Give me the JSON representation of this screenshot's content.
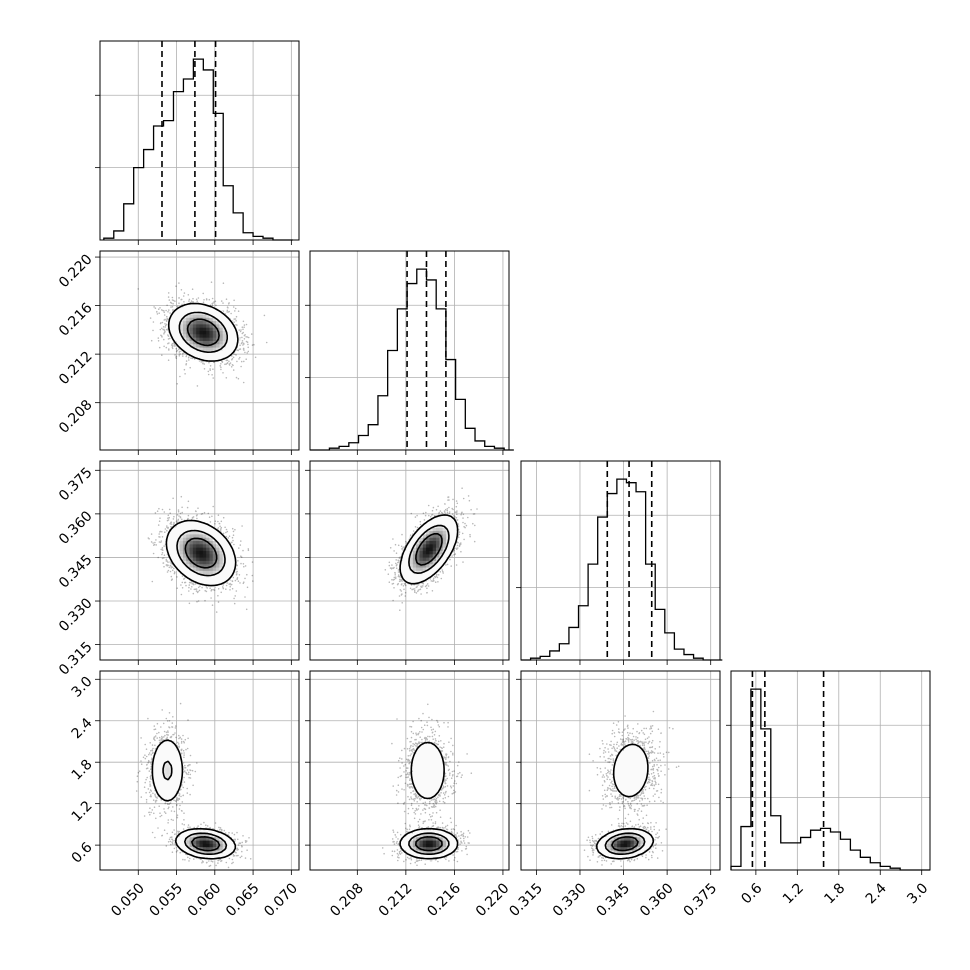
{
  "figure": {
    "type": "corner_plot",
    "n_params": 4,
    "grid": true,
    "quantiles": [
      0.16,
      0.5,
      0.84
    ]
  },
  "chart_data": [
    {
      "type": "histogram",
      "param_index": 0,
      "x_range": [
        0.045,
        0.071
      ],
      "x_ticks": [
        "0.050",
        "0.055",
        "0.060",
        "0.065",
        "0.070"
      ],
      "bins": [
        0.0455,
        0.0468,
        0.0481,
        0.0494,
        0.0507,
        0.052,
        0.0533,
        0.0546,
        0.0559,
        0.0572,
        0.0585,
        0.0598,
        0.0611,
        0.0624,
        0.0637,
        0.065,
        0.0663,
        0.0676,
        0.0689
      ],
      "counts": [
        0.01,
        0.05,
        0.2,
        0.4,
        0.5,
        0.63,
        0.66,
        0.82,
        0.89,
        1.0,
        0.94,
        0.7,
        0.3,
        0.15,
        0.04,
        0.02,
        0.01,
        0.0,
        0.0
      ],
      "quantile_values": [
        0.0531,
        0.0574,
        0.0601
      ]
    },
    {
      "type": "histogram",
      "param_index": 1,
      "x_range": [
        0.2041,
        0.2205
      ],
      "x_ticks": [
        "0.208",
        "0.212",
        "0.216",
        "0.220"
      ],
      "bins": [
        0.2041,
        0.2049,
        0.2057,
        0.2065,
        0.2073,
        0.2081,
        0.2089,
        0.2097,
        0.2105,
        0.2113,
        0.2121,
        0.2129,
        0.2137,
        0.2145,
        0.2153,
        0.2161,
        0.2169,
        0.2177,
        0.2185,
        0.2193,
        0.2201
      ],
      "counts": [
        0.0,
        0.0,
        0.01,
        0.02,
        0.04,
        0.08,
        0.14,
        0.3,
        0.55,
        0.78,
        0.92,
        1.0,
        0.94,
        0.78,
        0.5,
        0.28,
        0.12,
        0.05,
        0.02,
        0.01,
        0.0
      ],
      "quantile_values": [
        0.2121,
        0.2137,
        0.2153
      ]
    },
    {
      "type": "histogram",
      "param_index": 2,
      "x_range": [
        0.3097,
        0.3782
      ],
      "x_ticks": [
        "0.315",
        "0.330",
        "0.345",
        "0.360",
        "0.375"
      ],
      "bins": [
        0.3097,
        0.313,
        0.3163,
        0.3196,
        0.3229,
        0.3262,
        0.3295,
        0.3328,
        0.3361,
        0.3394,
        0.3427,
        0.346,
        0.3493,
        0.3526,
        0.3559,
        0.3592,
        0.3625,
        0.3658,
        0.3691,
        0.3724,
        0.3757
      ],
      "counts": [
        0.0,
        0.01,
        0.02,
        0.05,
        0.09,
        0.18,
        0.3,
        0.53,
        0.79,
        0.92,
        1.0,
        0.98,
        0.93,
        0.53,
        0.28,
        0.15,
        0.06,
        0.03,
        0.01,
        0.0,
        0.0
      ],
      "quantile_values": [
        0.3394,
        0.3469,
        0.3547
      ]
    },
    {
      "type": "histogram",
      "param_index": 3,
      "x_range": [
        0.24,
        3.12
      ],
      "x_ticks": [
        "0.6",
        "1.2",
        "1.8",
        "2.4",
        "3.0"
      ],
      "bins": [
        0.24,
        0.384,
        0.528,
        0.672,
        0.816,
        0.96,
        1.104,
        1.248,
        1.392,
        1.536,
        1.68,
        1.824,
        1.968,
        2.112,
        2.256,
        2.4,
        2.544,
        2.688,
        2.832,
        2.976
      ],
      "counts": [
        0.02,
        0.24,
        1.0,
        0.78,
        0.3,
        0.15,
        0.15,
        0.18,
        0.22,
        0.23,
        0.21,
        0.17,
        0.11,
        0.07,
        0.04,
        0.02,
        0.01,
        0.0,
        0.0,
        0.0
      ],
      "quantile_values": [
        0.55,
        0.73,
        1.58
      ]
    },
    {
      "type": "2d_density",
      "x_param": 0,
      "y_param": 1,
      "y_ticks": [
        "0.208",
        "0.212",
        "0.216",
        "0.220"
      ],
      "y_range": [
        0.2041,
        0.2205
      ],
      "modes": [
        {
          "x": 0.0585,
          "y": 0.2138,
          "sx": 0.0021,
          "sy": 0.0011,
          "rho": -0.25,
          "weight": 1.0
        }
      ]
    },
    {
      "type": "2d_density",
      "x_param": 0,
      "y_param": 2,
      "y_ticks": [
        "0.315",
        "0.330",
        "0.345",
        "0.360",
        "0.375"
      ],
      "y_range": [
        0.3097,
        0.3782
      ],
      "modes": [
        {
          "x": 0.0582,
          "y": 0.3465,
          "sx": 0.0021,
          "sy": 0.0052,
          "rho": -0.3,
          "weight": 1.0
        }
      ]
    },
    {
      "type": "2d_density",
      "x_param": 1,
      "y_param": 2,
      "modes": [
        {
          "x": 0.2139,
          "y": 0.3478,
          "sx": 0.0011,
          "sy": 0.0055,
          "rho": 0.55,
          "weight": 1.0
        }
      ]
    },
    {
      "type": "2d_density",
      "x_param": 0,
      "y_param": 3,
      "y_ticks": [
        "0.6",
        "1.2",
        "1.8",
        "2.4",
        "3.0"
      ],
      "y_range": [
        0.24,
        3.12
      ],
      "modes": [
        {
          "x": 0.0588,
          "y": 0.62,
          "sx": 0.0018,
          "sy": 0.1,
          "rho": -0.2,
          "weight": 0.6
        },
        {
          "x": 0.0538,
          "y": 1.68,
          "sx": 0.0012,
          "sy": 0.27,
          "rho": 0.0,
          "weight": 0.4
        }
      ]
    },
    {
      "type": "2d_density",
      "x_param": 1,
      "y_param": 3,
      "modes": [
        {
          "x": 0.2139,
          "y": 0.62,
          "sx": 0.0011,
          "sy": 0.1,
          "rho": 0.0,
          "weight": 0.6
        },
        {
          "x": 0.2138,
          "y": 1.68,
          "sx": 0.0009,
          "sy": 0.27,
          "rho": 0.0,
          "weight": 0.4
        }
      ]
    },
    {
      "type": "2d_density",
      "x_param": 2,
      "y_param": 3,
      "modes": [
        {
          "x": 0.3455,
          "y": 0.62,
          "sx": 0.0045,
          "sy": 0.1,
          "rho": 0.2,
          "weight": 0.6
        },
        {
          "x": 0.3475,
          "y": 1.68,
          "sx": 0.0042,
          "sy": 0.27,
          "rho": 0.1,
          "weight": 0.4
        }
      ]
    }
  ]
}
